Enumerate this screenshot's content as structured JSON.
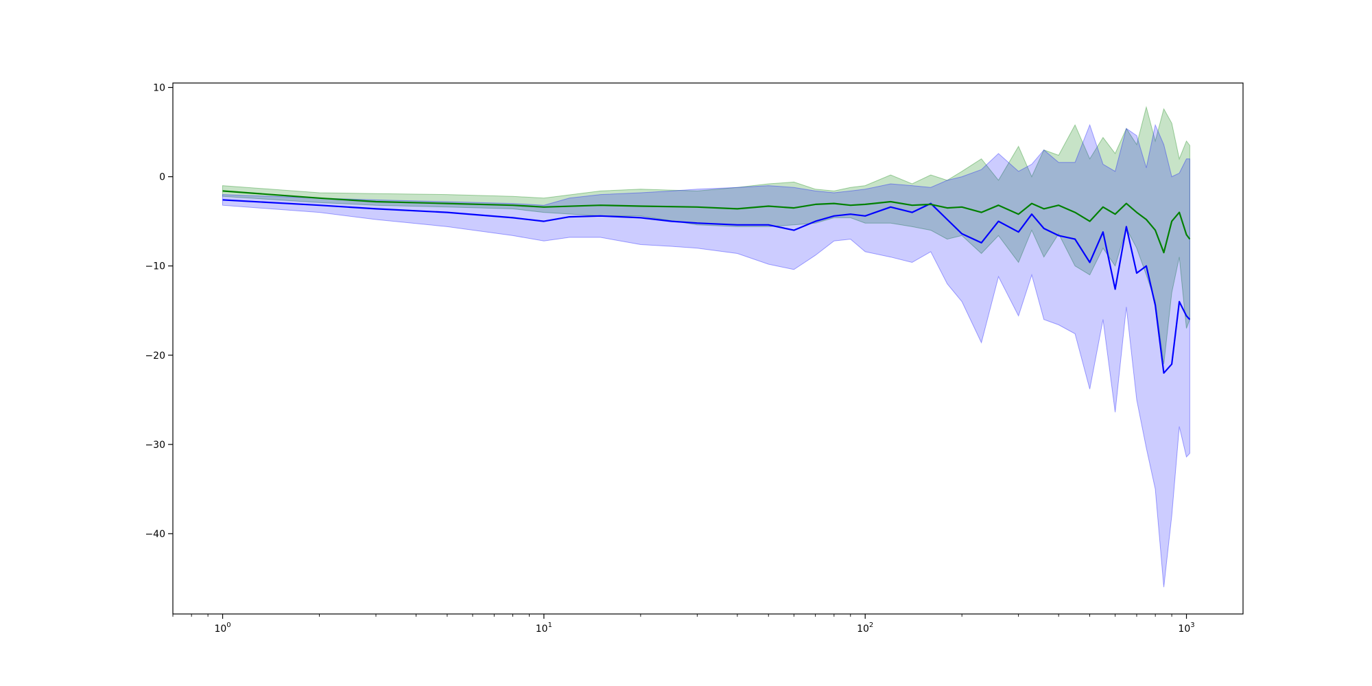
{
  "chart_data": {
    "type": "line",
    "title": "",
    "xlabel": "",
    "ylabel": "",
    "xscale": "log",
    "xlim": [
      0.7,
      1500
    ],
    "ylim": [
      -49,
      10.5
    ],
    "grid": false,
    "x_ticks": [
      {
        "base": "10",
        "exp": "0",
        "value": 1
      },
      {
        "base": "10",
        "exp": "1",
        "value": 10
      },
      {
        "base": "10",
        "exp": "2",
        "value": 100
      },
      {
        "base": "10",
        "exp": "3",
        "value": 1000
      }
    ],
    "y_ticks": [
      {
        "label": "10",
        "value": 10
      },
      {
        "label": "0",
        "value": 0
      },
      {
        "label": "−10",
        "value": -10
      },
      {
        "label": "−20",
        "value": -20
      },
      {
        "label": "−30",
        "value": -30
      },
      {
        "label": "−40",
        "value": -40
      }
    ],
    "series": [
      {
        "color": "#008000",
        "band_color": "#008000",
        "x": [
          1,
          2,
          3,
          5,
          8,
          10,
          15,
          20,
          30,
          40,
          50,
          60,
          70,
          80,
          90,
          100,
          120,
          140,
          160,
          180,
          200,
          230,
          260,
          300,
          330,
          360,
          400,
          450,
          500,
          550,
          600,
          650,
          700,
          750,
          800,
          850,
          900,
          950,
          1000,
          1024
        ],
        "mean": [
          -1.6,
          -2.4,
          -2.8,
          -3.0,
          -3.2,
          -3.4,
          -3.2,
          -3.3,
          -3.4,
          -3.6,
          -3.3,
          -3.5,
          -3.1,
          -3.0,
          -3.2,
          -3.1,
          -2.8,
          -3.2,
          -3.1,
          -3.5,
          -3.4,
          -4.0,
          -3.2,
          -4.2,
          -3.0,
          -3.6,
          -3.2,
          -4.0,
          -5.0,
          -3.4,
          -4.2,
          -3.0,
          -4.0,
          -4.8,
          -6.0,
          -8.5,
          -5.0,
          -4.0,
          -6.5,
          -7.0
        ],
        "upper": [
          -1.0,
          -1.8,
          -1.9,
          -2.0,
          -2.2,
          -2.4,
          -1.6,
          -1.4,
          -1.6,
          -1.2,
          -0.8,
          -0.6,
          -1.4,
          -1.6,
          -1.2,
          -1.0,
          0.2,
          -0.8,
          0.2,
          -0.4,
          0.6,
          2.0,
          -0.4,
          3.4,
          0.0,
          3.0,
          2.4,
          5.8,
          2.0,
          4.4,
          2.6,
          5.4,
          3.6,
          7.8,
          4.0,
          7.6,
          6.0,
          2.0,
          4.0,
          3.5
        ],
        "lower": [
          -2.2,
          -2.9,
          -3.2,
          -3.4,
          -3.6,
          -4.0,
          -4.4,
          -4.4,
          -5.4,
          -5.6,
          -5.6,
          -5.4,
          -5.2,
          -4.6,
          -4.6,
          -5.2,
          -5.2,
          -5.6,
          -6.0,
          -7.0,
          -6.6,
          -8.6,
          -6.6,
          -9.6,
          -6.0,
          -9.0,
          -6.4,
          -10.0,
          -11.0,
          -8.0,
          -10.0,
          -5.8,
          -8.0,
          -11.0,
          -14.0,
          -21.0,
          -13.0,
          -9.0,
          -17.0,
          -16.0
        ]
      },
      {
        "color": "#0000ff",
        "band_color": "#0000ff",
        "x": [
          1,
          2,
          3,
          5,
          8,
          10,
          12,
          15,
          20,
          25,
          30,
          40,
          50,
          60,
          70,
          80,
          90,
          100,
          120,
          140,
          160,
          180,
          200,
          230,
          260,
          300,
          330,
          360,
          400,
          450,
          500,
          550,
          600,
          650,
          700,
          750,
          800,
          850,
          900,
          950,
          1000,
          1024
        ],
        "mean": [
          -2.6,
          -3.2,
          -3.6,
          -4.0,
          -4.6,
          -5.0,
          -4.5,
          -4.4,
          -4.6,
          -5.0,
          -5.2,
          -5.4,
          -5.4,
          -6.0,
          -5.0,
          -4.4,
          -4.2,
          -4.4,
          -3.4,
          -4.0,
          -3.0,
          -4.8,
          -6.4,
          -7.4,
          -5.0,
          -6.2,
          -4.2,
          -5.8,
          -6.6,
          -7.0,
          -9.6,
          -6.2,
          -12.6,
          -5.6,
          -10.8,
          -10.0,
          -14.4,
          -22.0,
          -21.0,
          -14.0,
          -15.6,
          -16.0
        ],
        "upper": [
          -2.0,
          -2.4,
          -2.6,
          -2.8,
          -3.0,
          -3.2,
          -2.4,
          -2.0,
          -1.8,
          -1.6,
          -1.4,
          -1.2,
          -1.0,
          -1.2,
          -1.6,
          -1.8,
          -1.6,
          -1.4,
          -0.8,
          -1.0,
          -1.2,
          -0.4,
          0.0,
          0.8,
          2.6,
          0.6,
          1.4,
          3.0,
          1.6,
          1.6,
          5.8,
          1.4,
          0.6,
          5.4,
          4.6,
          1.0,
          5.8,
          3.6,
          0.0,
          0.4,
          2.0,
          2.0
        ],
        "lower": [
          -3.2,
          -4.0,
          -4.8,
          -5.6,
          -6.6,
          -7.2,
          -6.8,
          -6.8,
          -7.6,
          -7.8,
          -8.0,
          -8.6,
          -9.8,
          -10.4,
          -8.8,
          -7.2,
          -7.0,
          -8.4,
          -9.0,
          -9.6,
          -8.4,
          -12.0,
          -14.0,
          -18.6,
          -11.2,
          -15.6,
          -11.0,
          -16.0,
          -16.6,
          -17.6,
          -23.8,
          -16.0,
          -26.4,
          -14.6,
          -25.0,
          -30.4,
          -35.0,
          -46.0,
          -38.0,
          -28.0,
          -31.4,
          -31.0
        ]
      }
    ]
  }
}
